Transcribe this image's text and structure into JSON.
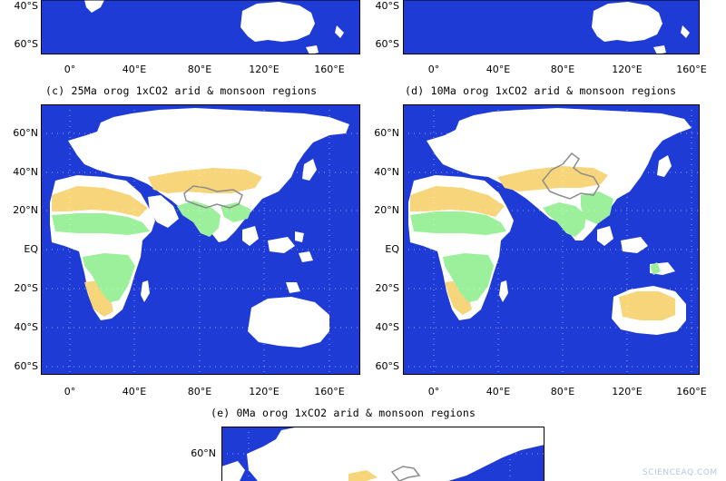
{
  "colors": {
    "ocean": "#1f3bd6",
    "land": "#ffffff",
    "arid": "#f7d57a",
    "monsoon": "#9cf09c",
    "tibet_contour": "#8c8c8c"
  },
  "panels": {
    "a": {
      "x_ticks": [
        "0°",
        "40°E",
        "80°E",
        "120°E",
        "160°E"
      ],
      "y_ticks": [
        "40°S",
        "60°S"
      ]
    },
    "b": {
      "x_ticks": [
        "0°",
        "40°E",
        "80°E",
        "120°E",
        "160°E"
      ],
      "y_ticks": [
        "40°S",
        "60°S"
      ]
    },
    "c": {
      "title": "(c) 25Ma orog 1xCO2 arid & monsoon regions",
      "x_ticks": [
        "0°",
        "40°E",
        "80°E",
        "120°E",
        "160°E"
      ],
      "y_ticks": [
        "60°N",
        "40°N",
        "20°N",
        "EQ",
        "20°S",
        "40°S",
        "60°S"
      ]
    },
    "d": {
      "title": "(d) 10Ma orog 1xCO2 arid & monsoon regions",
      "x_ticks": [
        "0°",
        "40°E",
        "80°E",
        "120°E",
        "160°E"
      ],
      "y_ticks": [
        "60°N",
        "40°N",
        "20°N",
        "EQ",
        "20°S",
        "40°S",
        "60°S"
      ]
    },
    "e": {
      "title": "(e)  0Ma orog 1xCO2 arid & monsoon regions",
      "y_ticks": [
        "60°N"
      ]
    }
  },
  "watermark": "SCIENCEAQ.COM"
}
